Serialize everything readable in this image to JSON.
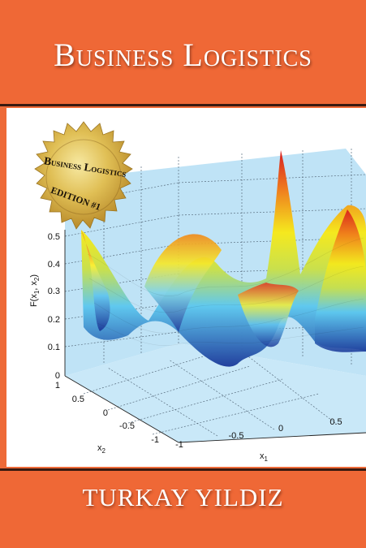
{
  "cover": {
    "title": "Business Logistics",
    "author": "TURKAY YILDIZ",
    "colors": {
      "band": "#ef6836",
      "pane": "#bfe3f6",
      "title_text": "#ffffff",
      "seal": "#d9b44a"
    }
  },
  "seal": {
    "line1": "Business Logistics",
    "line2": "EDITION #1"
  },
  "plot": {
    "z_ticks": [
      "0",
      "0.1",
      "0.2",
      "0.3",
      "0.4",
      "0.5"
    ],
    "z_label_main": "F(x",
    "z_label_sub1": "1",
    "z_label_mid": ", x",
    "z_label_sub2": "2",
    "z_label_end": ")",
    "x2_ticks": [
      "1",
      "0.5",
      "0",
      "-0.5",
      "-1"
    ],
    "x2_label": "x",
    "x2_label_sub": "2",
    "x1_ticks": [
      "-1",
      "-0.5",
      "0",
      "0.5"
    ],
    "x1_label": "x",
    "x1_label_sub": "1"
  }
}
